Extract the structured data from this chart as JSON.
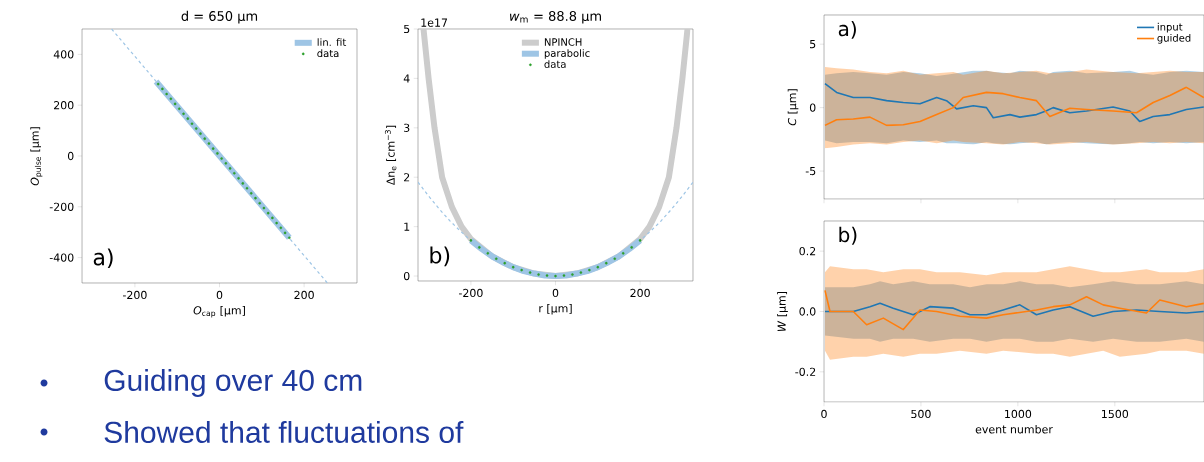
{
  "chart_data": [
    {
      "type": "line",
      "title": "d = 650 µm",
      "xlabel": "*O*$_{cap}$ [µm]",
      "ylabel": "*O*$_{pulse}$ [µm]",
      "xlim": [
        -325,
        325
      ],
      "ylim": [
        -500,
        500
      ],
      "xticks": [
        -200,
        0,
        200
      ],
      "yticks": [
        -400,
        -200,
        0,
        200,
        400
      ],
      "legend": "top right",
      "annotations": [
        "a)"
      ],
      "series": [
        {
          "name": "lin. fit",
          "color": "#9ec5e5",
          "x": [
            -150,
            165
          ],
          "values": [
            293,
            -322
          ]
        },
        {
          "color": "#9ec5e5",
          "line_style": "dashed",
          "x": [
            -255,
            255
          ],
          "values": [
            500,
            -500
          ]
        },
        {
          "name": "data",
          "type": "scatter",
          "color": "#2ca02c",
          "x": [
            -145,
            -135,
            -125,
            -115,
            -105,
            -95,
            -85,
            -75,
            -65,
            -55,
            -45,
            -35,
            -25,
            -15,
            -5,
            5,
            15,
            25,
            35,
            45,
            55,
            65,
            75,
            85,
            95,
            105,
            115,
            125,
            135,
            145,
            155,
            165
          ],
          "values": [
            283,
            264,
            244,
            225,
            205,
            186,
            166,
            147,
            127,
            108,
            88,
            68,
            49,
            29,
            10,
            -10,
            -29,
            -49,
            -68,
            -88,
            -108,
            -127,
            -147,
            -166,
            -186,
            -205,
            -225,
            -244,
            -264,
            -283,
            -303,
            -322
          ]
        }
      ]
    },
    {
      "type": "line",
      "title": "*w*$_{m}$ = 88.8 µm",
      "xlabel": "r [µm]",
      "ylabel": "Δn$_{e}$ [cm$^{−3}$]",
      "xlim": [
        -325,
        325
      ],
      "ylim": [
        -0.1,
        5
      ],
      "xticks": [
        -200,
        0,
        200
      ],
      "yticks": [
        0,
        1,
        2,
        3,
        4,
        5
      ],
      "legend": "top",
      "annotations": [
        "1e17",
        "b)"
      ],
      "series": [
        {
          "name": "NPINCH",
          "color": "#cccccc",
          "x": [
            -312,
            -300,
            -286,
            -268,
            -245,
            -222,
            -200,
            -150,
            -100,
            -50,
            0,
            50,
            100,
            150,
            200,
            222,
            245,
            268,
            286,
            300,
            312
          ],
          "values": [
            5,
            4,
            3,
            2,
            1.4,
            1,
            0.75,
            0.4,
            0.18,
            0.05,
            0,
            0.05,
            0.18,
            0.4,
            0.75,
            1,
            1.4,
            2,
            3,
            4,
            5
          ]
        },
        {
          "color": "#9ec5e5",
          "line_style": "dashed",
          "x": [
            -325,
            -300,
            -275,
            -250,
            -225,
            -200,
            -175,
            -150,
            -125,
            -100,
            -75,
            -50,
            -25,
            0,
            25,
            50,
            75,
            100,
            125,
            150,
            175,
            200,
            225,
            250,
            275,
            300,
            325
          ],
          "values": [
            1.9,
            1.62,
            1.36,
            1.12,
            0.91,
            0.72,
            0.55,
            0.4,
            0.28,
            0.18,
            0.1,
            0.05,
            0.01,
            0,
            0.01,
            0.05,
            0.1,
            0.18,
            0.28,
            0.4,
            0.55,
            0.72,
            0.91,
            1.12,
            1.36,
            1.62,
            1.9
          ]
        },
        {
          "name": "parabolic",
          "color": "#9ec5e5",
          "x": [
            -200,
            -175,
            -150,
            -125,
            -100,
            -75,
            -50,
            -25,
            0,
            25,
            50,
            75,
            100,
            125,
            150,
            175,
            200
          ],
          "values": [
            0.72,
            0.55,
            0.4,
            0.28,
            0.18,
            0.1,
            0.05,
            0.01,
            0,
            0.01,
            0.05,
            0.1,
            0.18,
            0.28,
            0.4,
            0.55,
            0.72
          ]
        },
        {
          "name": "data",
          "type": "scatter",
          "color": "#2ca02c",
          "x": [
            -200,
            -180,
            -160,
            -140,
            -120,
            -100,
            -80,
            -60,
            -40,
            -20,
            0,
            20,
            40,
            60,
            80,
            100,
            120,
            140,
            160,
            180,
            200
          ],
          "values": [
            0.72,
            0.58,
            0.46,
            0.35,
            0.26,
            0.18,
            0.12,
            0.07,
            0.03,
            0.01,
            0,
            0.01,
            0.03,
            0.07,
            0.12,
            0.18,
            0.26,
            0.35,
            0.46,
            0.58,
            0.72
          ]
        }
      ]
    },
    {
      "type": "line",
      "ylabel": "*C* [µm]",
      "xlim": [
        0,
        1960
      ],
      "ylim": [
        -7.2,
        7.3
      ],
      "xticks": [
        0,
        500,
        1000,
        1500
      ],
      "yticks": [
        -5,
        0,
        5
      ],
      "tick_labels": "y",
      "legend": "top right",
      "annotations": [
        "a)"
      ],
      "series": [
        {
          "name": "input",
          "color": "#1f77b4",
          "x": [
            5,
            65,
            151,
            237,
            323,
            409,
            495,
            581,
            632,
            684,
            770,
            838,
            873,
            959,
            1010,
            1096,
            1148,
            1182,
            1268,
            1354,
            1491,
            1577,
            1629,
            1698,
            1784,
            1869,
            1959
          ],
          "values": [
            1.9,
            1.2,
            0.8,
            0.8,
            0.55,
            0.4,
            0.3,
            0.8,
            0.55,
            -0.1,
            0.15,
            0,
            -0.8,
            -0.55,
            -0.75,
            -0.55,
            -0.25,
            0,
            -0.4,
            -0.27,
            0.05,
            -0.27,
            -1.1,
            -0.7,
            -0.55,
            -0.15,
            0.05
          ],
          "upper": [
            2.6,
            2.7,
            2.8,
            2.7,
            2.6,
            2.8,
            2.7,
            2.5,
            2.6,
            2.7,
            2.9,
            2.9,
            2.8,
            2.7,
            2.9,
            2.8,
            2.6,
            2.8,
            2.9,
            2.7,
            2.8,
            2.9,
            2.7,
            2.6,
            2.8,
            2.9,
            2.8
          ],
          "lower": [
            -2.6,
            -2.8,
            -2.7,
            -2.7,
            -2.8,
            -2.6,
            -2.7,
            -2.6,
            -2.8,
            -2.8,
            -2.9,
            -2.7,
            -2.8,
            -2.9,
            -2.8,
            -2.7,
            -2.9,
            -2.8,
            -2.7,
            -2.8,
            -2.9,
            -2.8,
            -2.7,
            -2.8,
            -2.7,
            -2.8,
            -2.7
          ]
        },
        {
          "name": "guided",
          "color": "#ff7f0e",
          "x": [
            5,
            65,
            151,
            237,
            323,
            409,
            495,
            581,
            667,
            718,
            838,
            924,
            1010,
            1096,
            1165,
            1268,
            1354,
            1491,
            1612,
            1698,
            1784,
            1869,
            1959
          ],
          "values": [
            -1.4,
            -0.95,
            -0.9,
            -0.75,
            -1.4,
            -1.35,
            -1.1,
            -0.55,
            0,
            0.8,
            1.2,
            1.1,
            0.8,
            0.55,
            -0.7,
            -0.05,
            -0.15,
            -0.27,
            -0.4,
            0.4,
            0.95,
            1.6,
            0.8
          ],
          "upper": [
            3.2,
            3.1,
            3.0,
            2.8,
            2.7,
            2.9,
            2.6,
            2.7,
            2.8,
            2.6,
            2.9,
            2.7,
            2.8,
            2.9,
            2.7,
            2.8,
            3.0,
            2.8,
            2.7,
            2.8,
            2.9,
            2.8,
            2.8
          ],
          "lower": [
            -3.2,
            -3.1,
            -2.9,
            -2.8,
            -2.9,
            -2.7,
            -2.6,
            -2.8,
            -2.6,
            -2.7,
            -2.8,
            -2.9,
            -2.7,
            -2.8,
            -2.9,
            -2.8,
            -2.7,
            -2.9,
            -2.8,
            -2.7,
            -2.8,
            -2.7,
            -2.8
          ]
        }
      ]
    },
    {
      "type": "line",
      "xlabel": "event number",
      "ylabel": "*W* [µm]",
      "xlim": [
        0,
        1960
      ],
      "ylim": [
        -0.3,
        0.3
      ],
      "xticks": [
        0,
        500,
        1000,
        1500
      ],
      "yticks": [
        -0.2,
        {
          "value": 0,
          "label": "0.0"
        },
        0.2
      ],
      "annotations": [
        "b)"
      ],
      "series": [
        {
          "color": "#1f77b4",
          "x": [
            5,
            151,
            237,
            289,
            357,
            460,
            546,
            667,
            753,
            838,
            924,
            1010,
            1096,
            1182,
            1268,
            1388,
            1491,
            1612,
            1732,
            1869,
            1959
          ],
          "values": [
            0,
            0,
            0.016,
            0.027,
            0.011,
            -0.011,
            0.016,
            0.011,
            -0.011,
            -0.011,
            0.005,
            0.022,
            -0.011,
            0.005,
            0.016,
            -0.016,
            0,
            0.005,
            0,
            -0.005,
            0
          ],
          "upper": [
            0.08,
            0.08,
            0.09,
            0.1,
            0.09,
            0.1,
            0.09,
            0.09,
            0.08,
            0.09,
            0.09,
            0.1,
            0.09,
            0.09,
            0.08,
            0.09,
            0.1,
            0.09,
            0.09,
            0.1,
            0.09
          ],
          "lower": [
            -0.08,
            -0.09,
            -0.09,
            -0.1,
            -0.09,
            -0.09,
            -0.1,
            -0.09,
            -0.09,
            -0.1,
            -0.09,
            -0.09,
            -0.1,
            -0.1,
            -0.09,
            -0.1,
            -0.09,
            -0.1,
            -0.1,
            -0.09,
            -0.1
          ]
        },
        {
          "color": "#ff7f0e",
          "x": [
            5,
            31,
            151,
            220,
            306,
            409,
            495,
            581,
            701,
            838,
            924,
            1096,
            1182,
            1268,
            1354,
            1440,
            1526,
            1663,
            1732,
            1869,
            1959
          ],
          "values": [
            0.07,
            0,
            0,
            -0.044,
            -0.022,
            -0.06,
            0.005,
            0,
            -0.016,
            -0.022,
            -0.011,
            0.005,
            0.016,
            0.022,
            0.049,
            0.022,
            0.011,
            -0.005,
            0.038,
            0.016,
            0.027
          ],
          "upper": [
            0.13,
            0.15,
            0.14,
            0.14,
            0.13,
            0.14,
            0.14,
            0.13,
            0.13,
            0.12,
            0.13,
            0.13,
            0.14,
            0.15,
            0.14,
            0.13,
            0.13,
            0.14,
            0.13,
            0.13,
            0.14
          ],
          "lower": [
            -0.13,
            -0.16,
            -0.15,
            -0.15,
            -0.14,
            -0.15,
            -0.14,
            -0.14,
            -0.13,
            -0.14,
            -0.13,
            -0.14,
            -0.14,
            -0.15,
            -0.14,
            -0.13,
            -0.15,
            -0.14,
            -0.13,
            -0.13,
            -0.14
          ]
        }
      ]
    },
    {
      "type": "other",
      "color": "#1f3a9e",
      "annotations": [
        "Guiding over 40 cm",
        "Showed that fluctuations of"
      ]
    }
  ]
}
